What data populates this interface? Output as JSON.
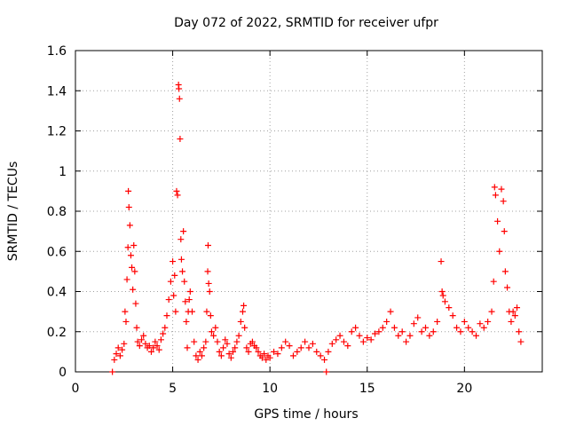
{
  "chart_data": {
    "type": "scatter",
    "title": "Day 072 of 2022, SRMTID for receiver ufpr",
    "xlabel": "GPS time / hours",
    "ylabel": "SRMTID / TECUs",
    "xlim": [
      0,
      24
    ],
    "ylim": [
      0,
      1.6
    ],
    "xticks": [
      0,
      5,
      10,
      15,
      20
    ],
    "yticks": [
      0,
      0.2,
      0.4,
      0.6,
      0.8,
      1,
      1.2,
      1.4,
      1.6
    ],
    "xtick_labels": [
      "0",
      "5",
      "10",
      "15",
      "20"
    ],
    "ytick_labels": [
      "0",
      "0.2",
      "0.4",
      "0.6",
      "0.8",
      "1",
      "1.2",
      "1.4",
      "1.6"
    ],
    "grid": true,
    "marker": "+",
    "color": "#ff0000",
    "series": [
      {
        "name": "SRMTID",
        "points": [
          [
            1.9,
            0.0
          ],
          [
            2.0,
            0.06
          ],
          [
            2.1,
            0.09
          ],
          [
            2.2,
            0.12
          ],
          [
            2.3,
            0.08
          ],
          [
            2.4,
            0.11
          ],
          [
            2.5,
            0.14
          ],
          [
            2.55,
            0.3
          ],
          [
            2.6,
            0.25
          ],
          [
            2.65,
            0.46
          ],
          [
            2.7,
            0.62
          ],
          [
            2.72,
            0.9
          ],
          [
            2.75,
            0.82
          ],
          [
            2.8,
            0.73
          ],
          [
            2.85,
            0.58
          ],
          [
            2.9,
            0.52
          ],
          [
            2.95,
            0.41
          ],
          [
            3.0,
            0.63
          ],
          [
            3.05,
            0.5
          ],
          [
            3.1,
            0.34
          ],
          [
            3.15,
            0.22
          ],
          [
            3.2,
            0.15
          ],
          [
            3.3,
            0.13
          ],
          [
            3.4,
            0.16
          ],
          [
            3.5,
            0.18
          ],
          [
            3.6,
            0.14
          ],
          [
            3.7,
            0.12
          ],
          [
            3.8,
            0.13
          ],
          [
            3.9,
            0.1
          ],
          [
            4.0,
            0.12
          ],
          [
            4.1,
            0.15
          ],
          [
            4.2,
            0.13
          ],
          [
            4.3,
            0.11
          ],
          [
            4.4,
            0.16
          ],
          [
            4.5,
            0.19
          ],
          [
            4.6,
            0.22
          ],
          [
            4.7,
            0.28
          ],
          [
            4.8,
            0.36
          ],
          [
            4.9,
            0.45
          ],
          [
            5.0,
            0.55
          ],
          [
            5.05,
            0.38
          ],
          [
            5.1,
            0.48
          ],
          [
            5.15,
            0.3
          ],
          [
            5.2,
            0.9
          ],
          [
            5.25,
            0.88
          ],
          [
            5.3,
            1.43
          ],
          [
            5.32,
            1.41
          ],
          [
            5.35,
            1.36
          ],
          [
            5.38,
            1.16
          ],
          [
            5.42,
            0.66
          ],
          [
            5.45,
            0.56
          ],
          [
            5.5,
            0.5
          ],
          [
            5.55,
            0.7
          ],
          [
            5.6,
            0.45
          ],
          [
            5.65,
            0.35
          ],
          [
            5.7,
            0.25
          ],
          [
            5.75,
            0.12
          ],
          [
            5.8,
            0.3
          ],
          [
            5.85,
            0.36
          ],
          [
            5.9,
            0.4
          ],
          [
            6.0,
            0.3
          ],
          [
            6.1,
            0.15
          ],
          [
            6.2,
            0.08
          ],
          [
            6.3,
            0.06
          ],
          [
            6.4,
            0.1
          ],
          [
            6.5,
            0.08
          ],
          [
            6.6,
            0.12
          ],
          [
            6.7,
            0.15
          ],
          [
            6.75,
            0.3
          ],
          [
            6.8,
            0.5
          ],
          [
            6.82,
            0.63
          ],
          [
            6.85,
            0.44
          ],
          [
            6.9,
            0.4
          ],
          [
            6.95,
            0.28
          ],
          [
            7.0,
            0.2
          ],
          [
            7.1,
            0.18
          ],
          [
            7.2,
            0.22
          ],
          [
            7.3,
            0.15
          ],
          [
            7.4,
            0.1
          ],
          [
            7.5,
            0.08
          ],
          [
            7.6,
            0.12
          ],
          [
            7.7,
            0.16
          ],
          [
            7.8,
            0.14
          ],
          [
            7.9,
            0.09
          ],
          [
            8.0,
            0.07
          ],
          [
            8.1,
            0.1
          ],
          [
            8.2,
            0.12
          ],
          [
            8.3,
            0.15
          ],
          [
            8.4,
            0.18
          ],
          [
            8.5,
            0.25
          ],
          [
            8.6,
            0.3
          ],
          [
            8.65,
            0.33
          ],
          [
            8.7,
            0.22
          ],
          [
            8.8,
            0.12
          ],
          [
            8.9,
            0.1
          ],
          [
            9.0,
            0.14
          ],
          [
            9.1,
            0.15
          ],
          [
            9.2,
            0.13
          ],
          [
            9.3,
            0.12
          ],
          [
            9.4,
            0.1
          ],
          [
            9.5,
            0.08
          ],
          [
            9.6,
            0.07
          ],
          [
            9.7,
            0.09
          ],
          [
            9.8,
            0.06
          ],
          [
            9.9,
            0.08
          ],
          [
            10.0,
            0.07
          ],
          [
            10.2,
            0.1
          ],
          [
            10.4,
            0.09
          ],
          [
            10.6,
            0.12
          ],
          [
            10.8,
            0.15
          ],
          [
            11.0,
            0.13
          ],
          [
            11.2,
            0.08
          ],
          [
            11.4,
            0.1
          ],
          [
            11.6,
            0.12
          ],
          [
            11.8,
            0.15
          ],
          [
            12.0,
            0.12
          ],
          [
            12.2,
            0.14
          ],
          [
            12.4,
            0.1
          ],
          [
            12.6,
            0.08
          ],
          [
            12.8,
            0.06
          ],
          [
            12.9,
            0.0
          ],
          [
            13.0,
            0.1
          ],
          [
            13.2,
            0.14
          ],
          [
            13.4,
            0.16
          ],
          [
            13.6,
            0.18
          ],
          [
            13.8,
            0.15
          ],
          [
            14.0,
            0.13
          ],
          [
            14.2,
            0.2
          ],
          [
            14.4,
            0.22
          ],
          [
            14.6,
            0.18
          ],
          [
            14.8,
            0.15
          ],
          [
            15.0,
            0.17
          ],
          [
            15.2,
            0.16
          ],
          [
            15.4,
            0.19
          ],
          [
            15.6,
            0.2
          ],
          [
            15.8,
            0.22
          ],
          [
            16.0,
            0.25
          ],
          [
            16.2,
            0.3
          ],
          [
            16.4,
            0.22
          ],
          [
            16.6,
            0.18
          ],
          [
            16.8,
            0.2
          ],
          [
            17.0,
            0.15
          ],
          [
            17.2,
            0.18
          ],
          [
            17.4,
            0.24
          ],
          [
            17.6,
            0.27
          ],
          [
            17.8,
            0.2
          ],
          [
            18.0,
            0.22
          ],
          [
            18.2,
            0.18
          ],
          [
            18.4,
            0.2
          ],
          [
            18.6,
            0.25
          ],
          [
            18.8,
            0.55
          ],
          [
            18.85,
            0.4
          ],
          [
            18.9,
            0.38
          ],
          [
            19.0,
            0.35
          ],
          [
            19.2,
            0.32
          ],
          [
            19.4,
            0.28
          ],
          [
            19.6,
            0.22
          ],
          [
            19.8,
            0.2
          ],
          [
            20.0,
            0.25
          ],
          [
            20.2,
            0.22
          ],
          [
            20.4,
            0.2
          ],
          [
            20.6,
            0.18
          ],
          [
            20.8,
            0.24
          ],
          [
            21.0,
            0.22
          ],
          [
            21.2,
            0.25
          ],
          [
            21.4,
            0.3
          ],
          [
            21.5,
            0.45
          ],
          [
            21.55,
            0.92
          ],
          [
            21.6,
            0.88
          ],
          [
            21.7,
            0.75
          ],
          [
            21.8,
            0.6
          ],
          [
            21.9,
            0.91
          ],
          [
            22.0,
            0.85
          ],
          [
            22.05,
            0.7
          ],
          [
            22.1,
            0.5
          ],
          [
            22.2,
            0.42
          ],
          [
            22.3,
            0.3
          ],
          [
            22.4,
            0.25
          ],
          [
            22.5,
            0.3
          ],
          [
            22.6,
            0.28
          ],
          [
            22.7,
            0.32
          ],
          [
            22.8,
            0.2
          ],
          [
            22.9,
            0.15
          ]
        ]
      }
    ]
  }
}
